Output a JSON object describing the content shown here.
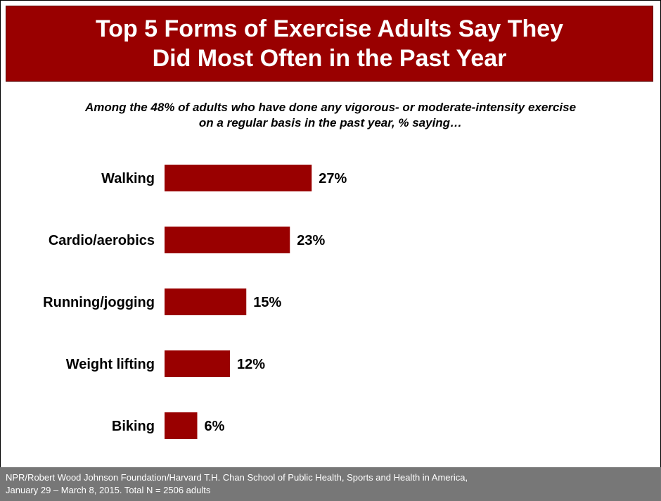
{
  "header": {
    "title_line1": "Top 5 Forms of Exercise Adults Say They",
    "title_line2": "Did Most Often in the Past Year"
  },
  "subtitle": {
    "line1": "Among the 48% of adults who have done any vigorous- or moderate-intensity exercise",
    "line2": "on a regular basis in the past year, % saying…"
  },
  "chart_data": {
    "type": "bar",
    "orientation": "horizontal",
    "title": "Top 5 Forms of Exercise Adults Say They Did Most Often in the Past Year",
    "categories": [
      "Walking",
      "Cardio/aerobics",
      "Running/jogging",
      "Weight lifting",
      "Biking"
    ],
    "values": [
      27,
      23,
      15,
      12,
      6
    ],
    "value_labels": [
      "27%",
      "23%",
      "15%",
      "12%",
      "6%"
    ],
    "unit": "%",
    "bar_color": "#990000",
    "grid": false,
    "legend": "none"
  },
  "footer": {
    "line1": "NPR/Robert Wood Johnson Foundation/Harvard T.H. Chan School of Public Health, Sports and Health in America,",
    "line2": "January 29 – March 8, 2015. Total N = 2506 adults"
  },
  "colors": {
    "accent": "#990000",
    "footer_bg": "#777777"
  }
}
